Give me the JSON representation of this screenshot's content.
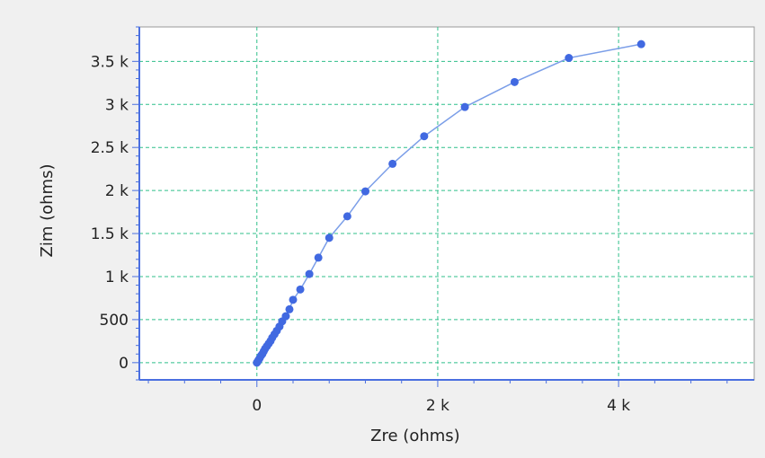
{
  "chart_data": {
    "type": "scatter",
    "title": "",
    "xlabel": "Zre (ohms)",
    "ylabel": "Zim (ohms)",
    "xlim": [
      -1300,
      5500
    ],
    "ylim": [
      -200,
      3900
    ],
    "x_ticks": [
      {
        "value": 0,
        "label": "0"
      },
      {
        "value": 2000,
        "label": "2 k"
      },
      {
        "value": 4000,
        "label": "4 k"
      }
    ],
    "y_ticks": [
      {
        "value": 0,
        "label": "0"
      },
      {
        "value": 500,
        "label": "500"
      },
      {
        "value": 1000,
        "label": "1 k"
      },
      {
        "value": 1500,
        "label": "1.5 k"
      },
      {
        "value": 2000,
        "label": "2 k"
      },
      {
        "value": 2500,
        "label": "2.5 k"
      },
      {
        "value": 3000,
        "label": "3 k"
      },
      {
        "value": 3500,
        "label": "3.5 k"
      }
    ],
    "grid": true,
    "legend": "none",
    "colors": {
      "series": "#4169e1",
      "line": "#7b9ee8",
      "grid": "#2fbf8a",
      "axis": "#4a6fe0",
      "plot_bg": "#ffffff",
      "page_bg": "#f0f0f0"
    },
    "series": [
      {
        "x": [
          0,
          15,
          30,
          45,
          60,
          75,
          90,
          110,
          130,
          150,
          170,
          195,
          220,
          250,
          280,
          320,
          360,
          400,
          480,
          580,
          680,
          800,
          1000,
          1200,
          1500,
          1850,
          2300,
          2850,
          3450,
          4250
        ],
        "y": [
          0,
          25,
          50,
          80,
          100,
          130,
          160,
          190,
          220,
          250,
          290,
          330,
          370,
          420,
          480,
          540,
          620,
          730,
          850,
          1030,
          1220,
          1450,
          1700,
          1990,
          2310,
          2630,
          2970,
          3260,
          3540,
          3700
        ]
      }
    ]
  }
}
